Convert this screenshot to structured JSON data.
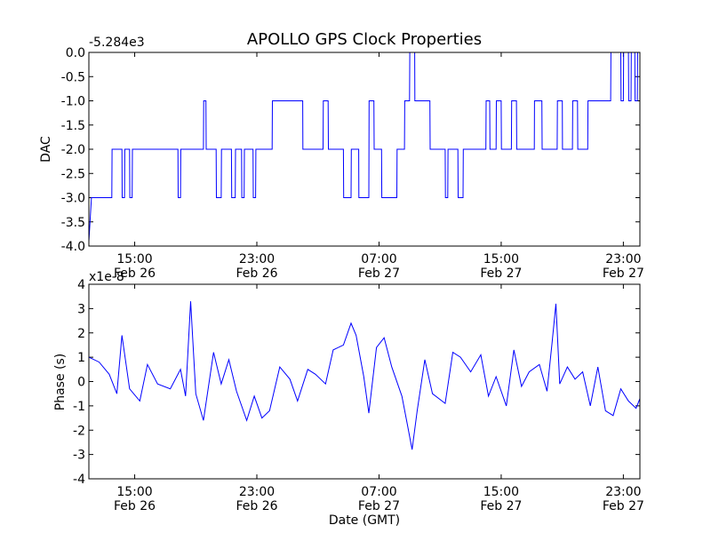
{
  "chart_data": [
    {
      "type": "line",
      "title": "APOLLO GPS Clock Properties",
      "ylabel": "DAC",
      "offset_label": "-5.284e3",
      "ylim": [
        -4.0,
        0.0
      ],
      "y_ticks": [
        "0.0",
        "-0.5",
        "-1.0",
        "-1.5",
        "-2.0",
        "-2.5",
        "-3.0",
        "-3.5",
        "-4.0"
      ],
      "x_tick_time": [
        "15:00",
        "23:00",
        "07:00",
        "15:00",
        "23:00"
      ],
      "x_tick_date": [
        "Feb 26",
        "Feb 26",
        "Feb 27",
        "Feb 27",
        "Feb 27"
      ],
      "xlabel": "",
      "grid": false,
      "series": [
        {
          "color": "#0000ff",
          "points": [
            [
              "Feb 26 12:00",
              -3.9
            ],
            [
              "Feb 26 12:10",
              -3.0
            ],
            [
              "Feb 26 13:30",
              -3.0
            ],
            [
              "Feb 26 13:31",
              -2.0
            ],
            [
              "Feb 26 14:10",
              -2.0
            ],
            [
              "Feb 26 14:11",
              -3.0
            ],
            [
              "Feb 26 14:20",
              -3.0
            ],
            [
              "Feb 26 14:21",
              -2.0
            ],
            [
              "Feb 26 14:40",
              -2.0
            ],
            [
              "Feb 26 14:41",
              -3.0
            ],
            [
              "Feb 26 14:50",
              -3.0
            ],
            [
              "Feb 26 14:51",
              -2.0
            ],
            [
              "Feb 26 17:50",
              -2.0
            ],
            [
              "Feb 26 17:51",
              -3.0
            ],
            [
              "Feb 26 18:00",
              -3.0
            ],
            [
              "Feb 26 18:01",
              -2.0
            ],
            [
              "Feb 26 19:30",
              -2.0
            ],
            [
              "Feb 26 19:31",
              -1.0
            ],
            [
              "Feb 26 19:40",
              -1.0
            ],
            [
              "Feb 26 19:41",
              -2.0
            ],
            [
              "Feb 26 20:20",
              -2.0
            ],
            [
              "Feb 26 20:21",
              -3.0
            ],
            [
              "Feb 26 20:40",
              -3.0
            ],
            [
              "Feb 26 20:41",
              -2.0
            ],
            [
              "Feb 26 21:20",
              -2.0
            ],
            [
              "Feb 26 21:21",
              -3.0
            ],
            [
              "Feb 26 21:35",
              -3.0
            ],
            [
              "Feb 26 21:36",
              -2.0
            ],
            [
              "Feb 26 22:00",
              -2.0
            ],
            [
              "Feb 26 22:01",
              -3.0
            ],
            [
              "Feb 26 22:10",
              -3.0
            ],
            [
              "Feb 26 22:11",
              -2.0
            ],
            [
              "Feb 26 22:45",
              -2.0
            ],
            [
              "Feb 26 22:46",
              -3.0
            ],
            [
              "Feb 26 22:55",
              -3.0
            ],
            [
              "Feb 26 22:56",
              -2.0
            ],
            [
              "Feb 27 00:00",
              -2.0
            ],
            [
              "Feb 27 00:01",
              -1.0
            ],
            [
              "Feb 27 02:00",
              -1.0
            ],
            [
              "Feb 27 02:01",
              -2.0
            ],
            [
              "Feb 27 03:20",
              -2.0
            ],
            [
              "Feb 27 03:21",
              -1.0
            ],
            [
              "Feb 27 03:40",
              -1.0
            ],
            [
              "Feb 27 03:41",
              -2.0
            ],
            [
              "Feb 27 04:40",
              -2.0
            ],
            [
              "Feb 27 04:41",
              -3.0
            ],
            [
              "Feb 27 05:10",
              -3.0
            ],
            [
              "Feb 27 05:11",
              -2.0
            ],
            [
              "Feb 27 05:40",
              -2.0
            ],
            [
              "Feb 27 05:41",
              -3.0
            ],
            [
              "Feb 27 06:20",
              -3.0
            ],
            [
              "Feb 27 06:21",
              -1.0
            ],
            [
              "Feb 27 06:40",
              -1.0
            ],
            [
              "Feb 27 06:41",
              -2.0
            ],
            [
              "Feb 27 07:10",
              -2.0
            ],
            [
              "Feb 27 07:11",
              -3.0
            ],
            [
              "Feb 27 08:10",
              -3.0
            ],
            [
              "Feb 27 08:11",
              -2.0
            ],
            [
              "Feb 27 08:40",
              -2.0
            ],
            [
              "Feb 27 08:41",
              -1.0
            ],
            [
              "Feb 27 09:00",
              -1.0
            ],
            [
              "Feb 27 09:01",
              0.0
            ],
            [
              "Feb 27 09:20",
              0.0
            ],
            [
              "Feb 27 09:21",
              -1.0
            ],
            [
              "Feb 27 10:20",
              -1.0
            ],
            [
              "Feb 27 10:21",
              -2.0
            ],
            [
              "Feb 27 11:20",
              -2.0
            ],
            [
              "Feb 27 11:21",
              -3.0
            ],
            [
              "Feb 27 11:30",
              -3.0
            ],
            [
              "Feb 27 11:31",
              -2.0
            ],
            [
              "Feb 27 12:10",
              -2.0
            ],
            [
              "Feb 27 12:11",
              -3.0
            ],
            [
              "Feb 27 12:30",
              -3.0
            ],
            [
              "Feb 27 12:31",
              -2.0
            ],
            [
              "Feb 27 14:00",
              -2.0
            ],
            [
              "Feb 27 14:01",
              -1.0
            ],
            [
              "Feb 27 14:15",
              -1.0
            ],
            [
              "Feb 27 14:16",
              -2.0
            ],
            [
              "Feb 27 14:40",
              -2.0
            ],
            [
              "Feb 27 14:41",
              -1.0
            ],
            [
              "Feb 27 15:00",
              -1.0
            ],
            [
              "Feb 27 15:01",
              -2.0
            ],
            [
              "Feb 27 15:40",
              -2.0
            ],
            [
              "Feb 27 15:41",
              -1.0
            ],
            [
              "Feb 27 16:00",
              -1.0
            ],
            [
              "Feb 27 16:01",
              -2.0
            ],
            [
              "Feb 27 17:10",
              -2.0
            ],
            [
              "Feb 27 17:11",
              -1.0
            ],
            [
              "Feb 27 17:40",
              -1.0
            ],
            [
              "Feb 27 17:41",
              -2.0
            ],
            [
              "Feb 27 18:40",
              -2.0
            ],
            [
              "Feb 27 18:41",
              -1.0
            ],
            [
              "Feb 27 19:00",
              -1.0
            ],
            [
              "Feb 27 19:01",
              -2.0
            ],
            [
              "Feb 27 19:40",
              -2.0
            ],
            [
              "Feb 27 19:41",
              -1.0
            ],
            [
              "Feb 27 20:00",
              -1.0
            ],
            [
              "Feb 27 20:01",
              -2.0
            ],
            [
              "Feb 27 20:40",
              -2.0
            ],
            [
              "Feb 27 20:41",
              -1.0
            ],
            [
              "Feb 27 22:10",
              -1.0
            ],
            [
              "Feb 27 22:11",
              0.0
            ],
            [
              "Feb 27 22:50",
              0.0
            ],
            [
              "Feb 27 22:51",
              -1.0
            ],
            [
              "Feb 27 23:00",
              -1.0
            ],
            [
              "Feb 27 23:01",
              0.0
            ],
            [
              "Feb 27 23:20",
              0.0
            ],
            [
              "Feb 27 23:21",
              -1.0
            ],
            [
              "Feb 27 23:30",
              -1.0
            ],
            [
              "Feb 27 23:31",
              0.0
            ],
            [
              "Feb 27 23:45",
              0.0
            ],
            [
              "Feb 27 23:46",
              -1.0
            ],
            [
              "Feb 27 23:55",
              -1.0
            ],
            [
              "Feb 27 23:56",
              0.0
            ]
          ]
        }
      ]
    },
    {
      "type": "line",
      "ylabel": "Phase (s)",
      "offset_label": "x1e-8",
      "ylim": [
        -4,
        4
      ],
      "y_ticks": [
        "4",
        "3",
        "2",
        "1",
        "0",
        "-1",
        "-2",
        "-3",
        "-4"
      ],
      "x_tick_time": [
        "15:00",
        "23:00",
        "07:00",
        "15:00",
        "23:00"
      ],
      "x_tick_date": [
        "Feb 26",
        "Feb 26",
        "Feb 27",
        "Feb 27",
        "Feb 27"
      ],
      "xlabel": "Date (GMT)",
      "grid": false,
      "series": [
        {
          "color": "#0000ff",
          "points": [
            [
              "Feb 26 12:00",
              1.0
            ],
            [
              "Feb 26 12:40",
              0.8
            ],
            [
              "Feb 26 13:20",
              0.3
            ],
            [
              "Feb 26 13:50",
              -0.5
            ],
            [
              "Feb 26 14:10",
              1.9
            ],
            [
              "Feb 26 14:40",
              -0.3
            ],
            [
              "Feb 26 15:20",
              -0.8
            ],
            [
              "Feb 26 15:50",
              0.7
            ],
            [
              "Feb 26 16:30",
              -0.1
            ],
            [
              "Feb 26 17:20",
              -0.3
            ],
            [
              "Feb 26 18:00",
              0.5
            ],
            [
              "Feb 26 18:20",
              -0.6
            ],
            [
              "Feb 26 18:40",
              3.3
            ],
            [
              "Feb 26 19:00",
              -0.5
            ],
            [
              "Feb 26 19:30",
              -1.6
            ],
            [
              "Feb 26 20:10",
              1.2
            ],
            [
              "Feb 26 20:40",
              -0.1
            ],
            [
              "Feb 26 21:10",
              0.9
            ],
            [
              "Feb 26 21:40",
              -0.4
            ],
            [
              "Feb 26 22:20",
              -1.6
            ],
            [
              "Feb 26 22:50",
              -0.6
            ],
            [
              "Feb 26 23:20",
              -1.5
            ],
            [
              "Feb 26 23:50",
              -1.2
            ],
            [
              "Feb 27 00:30",
              0.6
            ],
            [
              "Feb 27 01:10",
              0.1
            ],
            [
              "Feb 27 01:40",
              -0.8
            ],
            [
              "Feb 27 02:20",
              0.5
            ],
            [
              "Feb 27 02:50",
              0.3
            ],
            [
              "Feb 27 03:30",
              -0.1
            ],
            [
              "Feb 27 04:00",
              1.3
            ],
            [
              "Feb 27 04:40",
              1.5
            ],
            [
              "Feb 27 05:10",
              2.4
            ],
            [
              "Feb 27 05:30",
              1.9
            ],
            [
              "Feb 27 06:00",
              0.2
            ],
            [
              "Feb 27 06:20",
              -1.3
            ],
            [
              "Feb 27 06:50",
              1.4
            ],
            [
              "Feb 27 07:20",
              1.8
            ],
            [
              "Feb 27 07:50",
              0.6
            ],
            [
              "Feb 27 08:30",
              -0.6
            ],
            [
              "Feb 27 08:50",
              -1.7
            ],
            [
              "Feb 27 09:10",
              -2.8
            ],
            [
              "Feb 27 09:30",
              -1.2
            ],
            [
              "Feb 27 10:00",
              0.9
            ],
            [
              "Feb 27 10:30",
              -0.5
            ],
            [
              "Feb 27 11:20",
              -0.9
            ],
            [
              "Feb 27 11:50",
              1.2
            ],
            [
              "Feb 27 12:20",
              1.0
            ],
            [
              "Feb 27 13:00",
              0.4
            ],
            [
              "Feb 27 13:40",
              1.1
            ],
            [
              "Feb 27 14:10",
              -0.6
            ],
            [
              "Feb 27 14:40",
              0.2
            ],
            [
              "Feb 27 15:20",
              -1.0
            ],
            [
              "Feb 27 15:50",
              1.3
            ],
            [
              "Feb 27 16:20",
              -0.2
            ],
            [
              "Feb 27 16:50",
              0.4
            ],
            [
              "Feb 27 17:30",
              0.7
            ],
            [
              "Feb 27 18:00",
              -0.4
            ],
            [
              "Feb 27 18:20",
              1.6
            ],
            [
              "Feb 27 18:35",
              3.2
            ],
            [
              "Feb 27 18:50",
              -0.1
            ],
            [
              "Feb 27 19:20",
              0.6
            ],
            [
              "Feb 27 19:50",
              0.1
            ],
            [
              "Feb 27 20:20",
              0.4
            ],
            [
              "Feb 27 20:50",
              -1.0
            ],
            [
              "Feb 27 21:20",
              0.6
            ],
            [
              "Feb 27 21:50",
              -1.2
            ],
            [
              "Feb 27 22:20",
              -1.4
            ],
            [
              "Feb 27 22:50",
              -0.3
            ],
            [
              "Feb 27 23:20",
              -0.8
            ],
            [
              "Feb 27 23:50",
              -1.1
            ],
            [
              "Feb 28 00:05",
              -0.7
            ]
          ]
        }
      ]
    }
  ]
}
